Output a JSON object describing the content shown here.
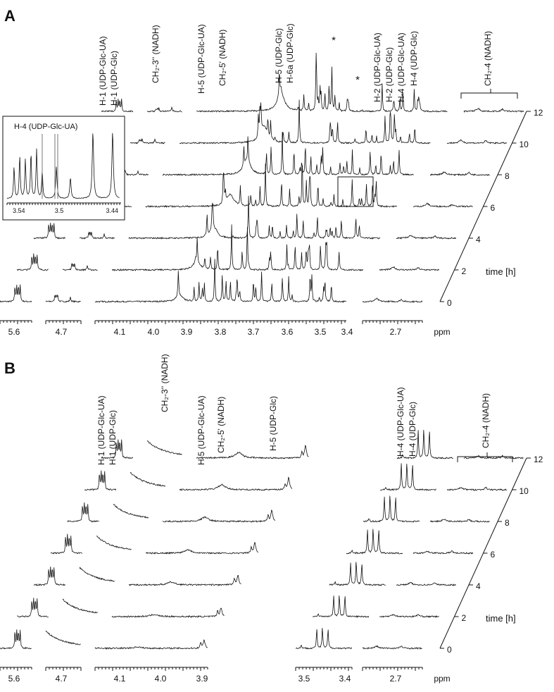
{
  "panel_a": {
    "label": "A",
    "peak_labels": [
      "H-1 (UDP-Glc-UA)",
      "H-1 (UDP-Glc)",
      "CH₂-3'' (NADH)",
      "H-5 (UDP-Glc-UA)",
      "CH₂-5' (NADH)",
      "H-5 (UDP-Glc)",
      "H-6a (UDP-Glc)",
      "H-2 (UDP-Glc-UA)",
      "H-2 (UDP-Glc)",
      "H-4 (UDP-Glc-UA)",
      "H-4 (UDP-Glc)",
      "CH₂-4 (NADH)"
    ],
    "asterisks": [
      "*",
      "*"
    ],
    "inset": {
      "label": "H-4 (UDP-Glc-UA)",
      "ticks": [
        "3.54",
        "3.5",
        "3.44"
      ]
    },
    "ppm_ticks": [
      "5.6",
      "4.7",
      "4.1",
      "4.0",
      "3.9",
      "3.8",
      "3.7",
      "3.6",
      "3.5",
      "3.4",
      "2.7"
    ],
    "ppm_unit": "ppm",
    "time_ticks": [
      "0",
      "2",
      "4",
      "6",
      "8",
      "10",
      "12"
    ],
    "time_label": "time [h]"
  },
  "panel_b": {
    "label": "B",
    "peak_labels": [
      "H-1 (UDP-Glc-UA)",
      "H-1 (UDP-Glc)",
      "CH₂-3'' (NADH)",
      "H-5 (UDP-Glc-UA)",
      "CH₂-5' (NADH)",
      "H-5 (UDP-Glc)",
      "H-4 (UDP-Glc-UA)",
      "H-4 (UDP-Glc)",
      "CH₂-4 (NADH)"
    ],
    "ppm_ticks": [
      "5.6",
      "4.7",
      "4.1",
      "4.0",
      "3.9",
      "3.5",
      "3.4",
      "2.7"
    ],
    "ppm_unit": "ppm",
    "time_ticks": [
      "0",
      "2",
      "4",
      "6",
      "8",
      "10",
      "12"
    ],
    "time_label": "time [h]"
  }
}
